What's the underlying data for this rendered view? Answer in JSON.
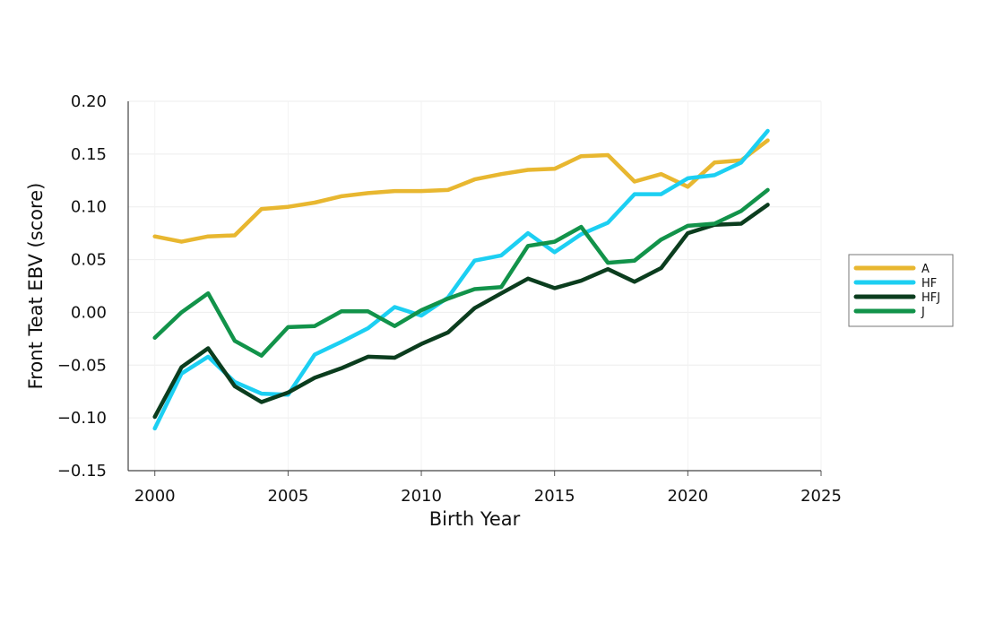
{
  "chart_data": {
    "type": "line",
    "xlabel": "Birth Year",
    "ylabel": "Front Teat EBV (score)",
    "xlim": [
      1999,
      2025
    ],
    "ylim": [
      -0.15,
      0.2
    ],
    "xticks": [
      2000,
      2005,
      2010,
      2015,
      2020,
      2025
    ],
    "xtick_labels": [
      "2000",
      "2005",
      "2010",
      "2015",
      "2020",
      "2025"
    ],
    "yticks": [
      -0.15,
      -0.1,
      -0.05,
      0.0,
      0.05,
      0.1,
      0.15,
      0.2
    ],
    "ytick_labels": [
      "−0.15",
      "−0.10",
      "−0.05",
      "0.00",
      "0.05",
      "0.10",
      "0.15",
      "0.20"
    ],
    "grid": true,
    "legend_position": "right",
    "x": [
      2000,
      2001,
      2002,
      2003,
      2004,
      2005,
      2006,
      2007,
      2008,
      2009,
      2010,
      2011,
      2012,
      2013,
      2014,
      2015,
      2016,
      2017,
      2018,
      2019,
      2020,
      2021,
      2022,
      2023
    ],
    "series": [
      {
        "name": "A",
        "color": "#E8B730",
        "values": [
          0.072,
          0.067,
          0.072,
          0.073,
          0.098,
          0.1,
          0.104,
          0.11,
          0.113,
          0.115,
          0.115,
          0.116,
          0.126,
          0.131,
          0.135,
          0.136,
          0.148,
          0.149,
          0.124,
          0.131,
          0.119,
          0.142,
          0.144,
          0.163
        ]
      },
      {
        "name": "HF",
        "color": "#1CCFF2",
        "values": [
          -0.11,
          -0.058,
          -0.042,
          -0.066,
          -0.077,
          -0.078,
          -0.04,
          -0.028,
          -0.015,
          0.005,
          -0.003,
          0.014,
          0.049,
          0.054,
          0.075,
          0.057,
          0.074,
          0.085,
          0.112,
          0.112,
          0.127,
          0.13,
          0.142,
          0.172
        ]
      },
      {
        "name": "HFJ",
        "color": "#0B3D1E",
        "values": [
          -0.099,
          -0.052,
          -0.034,
          -0.07,
          -0.085,
          -0.076,
          -0.062,
          -0.053,
          -0.042,
          -0.043,
          -0.03,
          -0.019,
          0.004,
          0.018,
          0.032,
          0.023,
          0.03,
          0.041,
          0.029,
          0.042,
          0.075,
          0.083,
          0.084,
          0.102
        ]
      },
      {
        "name": "J",
        "color": "#12934A",
        "values": [
          -0.024,
          0.0,
          0.018,
          -0.027,
          -0.041,
          -0.014,
          -0.013,
          0.001,
          0.001,
          -0.013,
          0.002,
          0.013,
          0.022,
          0.024,
          0.063,
          0.067,
          0.081,
          0.047,
          0.049,
          0.069,
          0.082,
          0.084,
          0.096,
          0.116
        ]
      }
    ]
  }
}
